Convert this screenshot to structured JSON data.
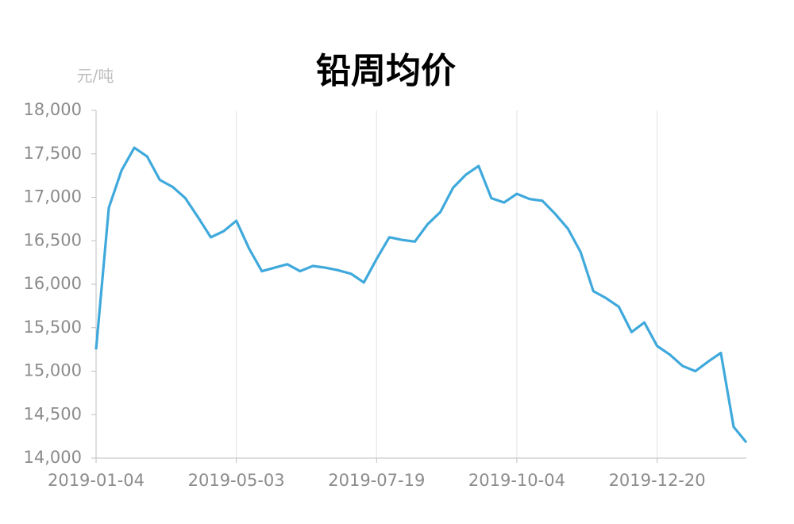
{
  "chart_data": {
    "type": "line",
    "title": "铅周均价",
    "y_label": "元/吨",
    "categories": [
      "2019-01-04",
      null,
      null,
      null,
      null,
      null,
      null,
      null,
      null,
      null,
      null,
      "2019-05-03",
      null,
      null,
      null,
      null,
      null,
      null,
      null,
      null,
      null,
      null,
      "2019-07-19",
      null,
      null,
      null,
      null,
      null,
      null,
      null,
      null,
      null,
      null,
      "2019-10-04",
      null,
      null,
      null,
      null,
      null,
      null,
      null,
      null,
      null,
      null,
      "2019-12-20",
      null,
      null,
      null,
      null,
      null,
      null,
      null
    ],
    "series": [
      {
        "name": "铅周均价",
        "color": "#3fa9dc",
        "values": [
          15250,
          16880,
          17310,
          17570,
          17470,
          17200,
          17120,
          16990,
          16770,
          16540,
          16610,
          16730,
          16410,
          16150,
          16190,
          16230,
          16150,
          16210,
          16190,
          16160,
          16120,
          16020,
          16290,
          16540,
          16510,
          16490,
          16690,
          16830,
          17110,
          17260,
          17360,
          16990,
          16940,
          17040,
          16980,
          16960,
          16810,
          16640,
          16370,
          15920,
          15840,
          15740,
          15450,
          15560,
          15290,
          15190,
          15060,
          15000,
          15110,
          15210,
          14360,
          14180
        ]
      }
    ],
    "ylim": [
      14000,
      18000
    ],
    "yticks": [
      {
        "value": 14000,
        "label": "14,000"
      },
      {
        "value": 14500,
        "label": "14,500"
      },
      {
        "value": 15000,
        "label": "15,000"
      },
      {
        "value": 15500,
        "label": "15,500"
      },
      {
        "value": 16000,
        "label": "16,000"
      },
      {
        "value": 16500,
        "label": "16,500"
      },
      {
        "value": 17000,
        "label": "17,000"
      },
      {
        "value": 17500,
        "label": "17,500"
      },
      {
        "value": 18000,
        "label": "18,000"
      }
    ],
    "grid": "x"
  }
}
